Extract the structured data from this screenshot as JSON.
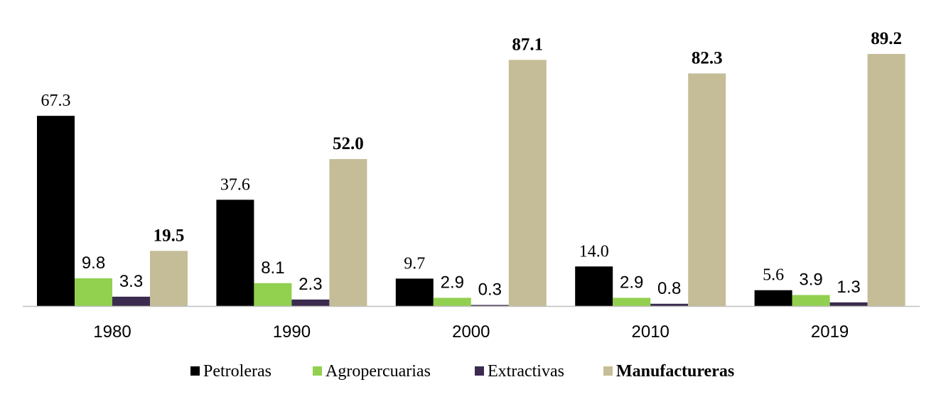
{
  "chart_data": {
    "type": "bar",
    "categories": [
      "1980",
      "1990",
      "2000",
      "2010",
      "2019"
    ],
    "series": [
      {
        "name": "Petroleras",
        "values": [
          67.3,
          37.6,
          9.7,
          14.0,
          5.6
        ],
        "color": "#000000"
      },
      {
        "name": "Agropercuarias",
        "values": [
          9.8,
          8.1,
          2.9,
          2.9,
          3.9
        ],
        "color": "#92d050"
      },
      {
        "name": "Extractivas",
        "values": [
          3.3,
          2.3,
          0.3,
          0.8,
          1.3
        ],
        "color": "#3b2b4f"
      },
      {
        "name": "Manufactureras",
        "values": [
          19.5,
          52.0,
          87.1,
          82.3,
          89.2
        ],
        "color": "#c4bd97"
      }
    ],
    "value_labels": [
      [
        "67.3",
        "37.6",
        "9.7",
        "14.0",
        "5.6"
      ],
      [
        "9.8",
        "8.1",
        "2.9",
        "2.9",
        "3.9"
      ],
      [
        "3.3",
        "2.3",
        "0.3",
        "0.8",
        "1.3"
      ],
      [
        "19.5",
        "52.0",
        "87.1",
        "82.3",
        "89.2"
      ]
    ],
    "ylim": [
      0,
      100
    ],
    "legend_position": "bottom",
    "grid": false
  }
}
